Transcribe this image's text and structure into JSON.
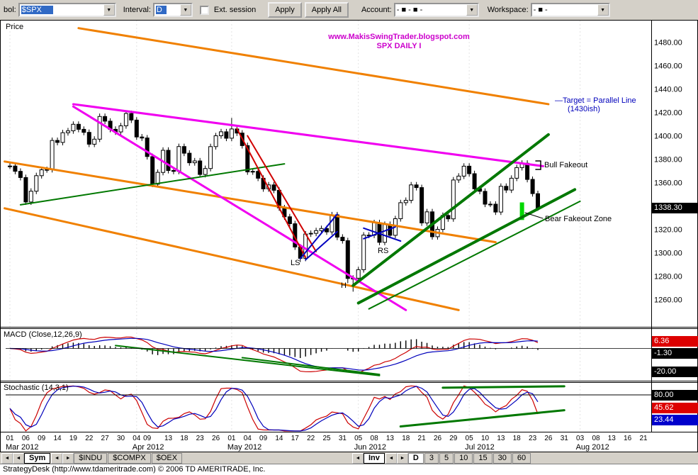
{
  "toolbar": {
    "symbol_label": "bol:",
    "symbol_value": "$SPX",
    "interval_label": "Interval:",
    "interval_value": "D",
    "ext_session_label": "Ext. session",
    "apply_label": "Apply",
    "apply_all_label": "Apply All",
    "account_label": "Account:",
    "account_value": "- ■ - ■ -",
    "workspace_label": "Workspace:",
    "workspace_value": "- ■ -"
  },
  "panels": {
    "price_title": "Price",
    "macd_title": "MACD (Close,12,26,9)",
    "stoch_title": "Stochastic (14,3,1)"
  },
  "badges": {
    "last_price": "1338.30",
    "macd_value": "6.36",
    "macd_signal": "-1.30",
    "macd_low": "-20.00",
    "stoch_level": "80.00",
    "stoch_k": "45.62",
    "stoch_d": "23.44"
  },
  "annotations": {
    "watermark_line1": "www.MakisSwingTrader.blogspot.com",
    "watermark_line2": "SPX DAILY I",
    "target_line1": "—Target = Parallel Line",
    "target_line2": "(1430ish)",
    "bull_fakeout": "Bull Fakeout",
    "bear_fakeout": "Bear Fakeout Zone",
    "ls": "LS",
    "h": "H",
    "rs": "RS"
  },
  "tab_groups": {
    "left": {
      "nav_prev1": "◄",
      "nav_prev2": "◄",
      "active_tab": "Sym",
      "nav_next1": "◄",
      "nav_next2": "►",
      "tab0": "$INDU",
      "tab1": "$COMPX",
      "tab2": "$OEX"
    },
    "right": {
      "nav_prev1": "◄",
      "active_tab": "Inv",
      "nav_next1": "◄",
      "nav_next2": "►",
      "tab0": "D",
      "tab1": "3",
      "tab2": "5",
      "tab3": "10",
      "tab4": "15",
      "tab5": "30",
      "tab6": "60"
    }
  },
  "status_bar": "StrategyDesk (http://www.tdameritrade.com) © 2006 TD AMERITRADE, Inc.",
  "colors": {
    "selection_blue": "#316ac5",
    "toolbar_bg": "#d4d0c8",
    "watermark": "#cc00cc",
    "target_text": "#0000bb",
    "badge_red": "#dd0000",
    "badge_blue": "#0000cc",
    "candle_up": "#ffffff",
    "candle_down": "#000000",
    "macd_line": "#cc0000",
    "signal_line": "#0000bb",
    "stoch_k": "#cc0000",
    "stoch_d": "#0000bb",
    "channel_orange": "#f08000",
    "trend_magenta": "#f000f0",
    "trend_green": "#007800",
    "trend_red": "#d00000",
    "trend_blue": "#0000c0",
    "zone_lime": "#00d800"
  },
  "chart_data": {
    "type": "candlestick",
    "title": "SPX DAILY I",
    "symbol": "$SPX",
    "interval": "D",
    "price_axis": {
      "min": 1260,
      "max": 1480,
      "step": 20,
      "last": 1338.3,
      "labels": [
        1480,
        1460,
        1440,
        1420,
        1400,
        1380,
        1360,
        1320,
        1300,
        1280,
        1260
      ]
    },
    "dates": [
      "03/01",
      "03/02",
      "03/05",
      "03/06",
      "03/07",
      "03/08",
      "03/09",
      "03/12",
      "03/13",
      "03/14",
      "03/15",
      "03/16",
      "03/19",
      "03/20",
      "03/21",
      "03/22",
      "03/23",
      "03/26",
      "03/27",
      "03/28",
      "03/29",
      "03/30",
      "04/02",
      "04/03",
      "04/04",
      "04/05",
      "04/09",
      "04/10",
      "04/11",
      "04/12",
      "04/13",
      "04/16",
      "04/17",
      "04/18",
      "04/19",
      "04/20",
      "04/23",
      "04/24",
      "04/25",
      "04/26",
      "04/27",
      "04/30",
      "05/01",
      "05/02",
      "05/03",
      "05/04",
      "05/07",
      "05/08",
      "05/09",
      "05/10",
      "05/11",
      "05/14",
      "05/15",
      "05/16",
      "05/17",
      "05/18",
      "05/21",
      "05/22",
      "05/23",
      "05/24",
      "05/25",
      "05/29",
      "05/30",
      "05/31",
      "06/01",
      "06/04",
      "06/05",
      "06/06",
      "06/07",
      "06/08",
      "06/11",
      "06/12",
      "06/13",
      "06/14",
      "06/15",
      "06/18",
      "06/19",
      "06/20",
      "06/21",
      "06/22",
      "06/25",
      "06/26",
      "06/27",
      "06/28",
      "06/29",
      "07/02",
      "07/03",
      "07/05",
      "07/06",
      "07/09",
      "07/10",
      "07/11",
      "07/12",
      "07/13",
      "07/16",
      "07/17",
      "07/18",
      "07/19",
      "07/20",
      "07/23",
      "07/24"
    ],
    "closes": [
      1374.1,
      1369.6,
      1364.3,
      1343.4,
      1352.6,
      1365.9,
      1370.9,
      1371.1,
      1396.0,
      1394.3,
      1402.6,
      1404.2,
      1409.8,
      1405.5,
      1402.9,
      1392.8,
      1397.1,
      1416.5,
      1412.5,
      1405.5,
      1403.3,
      1408.5,
      1419.0,
      1413.4,
      1399.0,
      1398.1,
      1382.2,
      1358.6,
      1368.7,
      1387.6,
      1370.3,
      1369.6,
      1390.8,
      1385.1,
      1376.9,
      1378.5,
      1366.9,
      1372.0,
      1390.7,
      1400.0,
      1403.4,
      1397.9,
      1405.8,
      1402.3,
      1391.6,
      1369.1,
      1369.6,
      1363.7,
      1354.6,
      1358.0,
      1353.4,
      1338.4,
      1330.7,
      1324.8,
      1304.9,
      1295.2,
      1316.0,
      1316.6,
      1318.9,
      1320.7,
      1317.8,
      1332.4,
      1313.3,
      1310.3,
      1278.0,
      1278.2,
      1285.5,
      1315.1,
      1315.0,
      1325.7,
      1308.9,
      1324.2,
      1314.9,
      1329.1,
      1342.8,
      1344.8,
      1358.0,
      1355.7,
      1325.5,
      1335.0,
      1313.7,
      1320.0,
      1331.9,
      1329.0,
      1362.2,
      1365.5,
      1374.0,
      1367.6,
      1354.7,
      1352.5,
      1341.5,
      1341.5,
      1334.8,
      1356.8,
      1353.6,
      1363.7,
      1372.8,
      1376.5,
      1362.7,
      1350.5,
      1338.3
    ],
    "low_overrides": [
      [
        55,
        1292.0
      ],
      [
        64,
        1274.0
      ],
      [
        65,
        1266.7
      ]
    ],
    "high_overrides": [
      [
        42,
        1415.3
      ]
    ],
    "x_ticks": [
      [
        0,
        "01"
      ],
      [
        3,
        "06"
      ],
      [
        6,
        "09"
      ],
      [
        9,
        "14"
      ],
      [
        12,
        "19"
      ],
      [
        15,
        "22"
      ],
      [
        18,
        "27"
      ],
      [
        21,
        "30"
      ],
      [
        24,
        "04"
      ],
      [
        26,
        "09"
      ],
      [
        30,
        "13"
      ],
      [
        33,
        "18"
      ],
      [
        36,
        "23"
      ],
      [
        39,
        "26"
      ],
      [
        42,
        "01"
      ],
      [
        45,
        "04"
      ],
      [
        48,
        "09"
      ],
      [
        51,
        "14"
      ],
      [
        54,
        "17"
      ],
      [
        57,
        "22"
      ],
      [
        60,
        "25"
      ],
      [
        63,
        "31"
      ],
      [
        66,
        "05"
      ],
      [
        69,
        "08"
      ],
      [
        72,
        "13"
      ],
      [
        75,
        "18"
      ],
      [
        78,
        "21"
      ],
      [
        81,
        "26"
      ],
      [
        84,
        "29"
      ],
      [
        87,
        "05"
      ],
      [
        90,
        "10"
      ],
      [
        93,
        "13"
      ],
      [
        96,
        "18"
      ],
      [
        99,
        "23"
      ],
      [
        102,
        "26"
      ],
      [
        105,
        "31"
      ],
      [
        108,
        "03"
      ],
      [
        111,
        "08"
      ],
      [
        114,
        "13"
      ],
      [
        117,
        "16"
      ],
      [
        120,
        "21"
      ]
    ],
    "months": [
      [
        0,
        "Mar 2012"
      ],
      [
        24,
        "Apr 2012"
      ],
      [
        42,
        "May 2012"
      ],
      [
        66,
        "Jun 2012"
      ],
      [
        87,
        "Jul 2012"
      ],
      [
        108,
        "Aug 2012"
      ]
    ],
    "indicators": [
      {
        "name": "MACD",
        "params": "Close,12,26,9",
        "value_labels": [
          6.36,
          -1.3,
          -20.0
        ]
      },
      {
        "name": "Stochastic",
        "params": "14,3,1",
        "levels": [
          80
        ],
        "value_labels": [
          80.0,
          45.62,
          23.44
        ]
      }
    ],
    "zone": {
      "day": 97,
      "p_low": 1328,
      "p_high": 1343,
      "color": "#00d800"
    },
    "trendlines": [
      {
        "panel": "price",
        "color": "#f08000",
        "width": 3,
        "pts": [
          [
            13,
            1492
          ],
          [
            102,
            1427
          ]
        ]
      },
      {
        "panel": "price",
        "color": "#f08000",
        "width": 3,
        "pts": [
          [
            -1,
            1378
          ],
          [
            92,
            1309
          ]
        ]
      },
      {
        "panel": "price",
        "color": "#f08000",
        "width": 3,
        "pts": [
          [
            -1,
            1338
          ],
          [
            85,
            1251
          ]
        ]
      },
      {
        "panel": "price",
        "color": "#f000f0",
        "width": 3,
        "pts": [
          [
            12,
            1427
          ],
          [
            101,
            1374
          ]
        ]
      },
      {
        "panel": "price",
        "color": "#f000f0",
        "width": 3,
        "pts": [
          [
            12,
            1425
          ],
          [
            75,
            1251
          ]
        ]
      },
      {
        "panel": "price",
        "color": "#007800",
        "width": 2,
        "pts": [
          [
            2,
            1341
          ],
          [
            52,
            1376
          ]
        ]
      },
      {
        "panel": "price",
        "color": "#007800",
        "width": 4,
        "pts": [
          [
            65,
            1272
          ],
          [
            102,
            1401
          ]
        ]
      },
      {
        "panel": "price",
        "color": "#007800",
        "width": 4,
        "pts": [
          [
            66,
            1257
          ],
          [
            107,
            1354
          ]
        ]
      },
      {
        "panel": "price",
        "color": "#007800",
        "width": 2,
        "pts": [
          [
            68,
            1252
          ],
          [
            108,
            1344
          ]
        ]
      },
      {
        "panel": "price",
        "color": "#d00000",
        "width": 2,
        "pts": [
          [
            43,
            1406
          ],
          [
            56,
            1296
          ]
        ]
      },
      {
        "panel": "price",
        "color": "#d00000",
        "width": 2,
        "pts": [
          [
            45,
            1400
          ],
          [
            58,
            1301
          ]
        ]
      },
      {
        "panel": "price",
        "color": "#0000c0",
        "width": 2,
        "pts": [
          [
            55,
            1295
          ],
          [
            62,
            1333
          ]
        ]
      },
      {
        "panel": "price",
        "color": "#0000c0",
        "width": 2,
        "pts": [
          [
            56,
            1294
          ],
          [
            62,
            1318
          ]
        ]
      },
      {
        "panel": "price",
        "color": "#0000c0",
        "width": 2,
        "pts": [
          [
            67,
            1321
          ],
          [
            74,
            1310
          ]
        ]
      },
      {
        "panel": "price",
        "color": "#0000c0",
        "width": 2,
        "pts": [
          [
            67,
            1312
          ],
          [
            73,
            1322
          ]
        ]
      },
      {
        "panel": "macd",
        "color": "#007800",
        "width": 2,
        "pts": [
          [
            20,
            2.5
          ],
          [
            70,
            -23.5
          ]
        ]
      },
      {
        "panel": "macd",
        "color": "#007800",
        "width": 2,
        "pts": [
          [
            44,
            -8
          ],
          [
            70,
            -22.5
          ]
        ]
      },
      {
        "panel": "stoch",
        "color": "#007800",
        "width": 3,
        "pts": [
          [
            82,
            96
          ],
          [
            105,
            99
          ]
        ]
      },
      {
        "panel": "stoch",
        "color": "#007800",
        "width": 3,
        "pts": [
          [
            74,
            10
          ],
          [
            105,
            46
          ]
        ]
      },
      {
        "panel": "px",
        "color": "#000000",
        "width": 1.5,
        "pts": [
          [
            756,
            227
          ],
          [
            763,
            227
          ]
        ]
      },
      {
        "panel": "px",
        "color": "#000000",
        "width": 1.5,
        "pts": [
          [
            763,
            227
          ],
          [
            763,
            239
          ]
        ]
      },
      {
        "panel": "px",
        "color": "#000000",
        "width": 1.5,
        "pts": [
          [
            756,
            239
          ],
          [
            763,
            239
          ]
        ]
      },
      {
        "panel": "px",
        "color": "#000000",
        "width": 1,
        "pts": [
          [
            741,
            300
          ],
          [
            766,
            308
          ]
        ]
      }
    ]
  }
}
